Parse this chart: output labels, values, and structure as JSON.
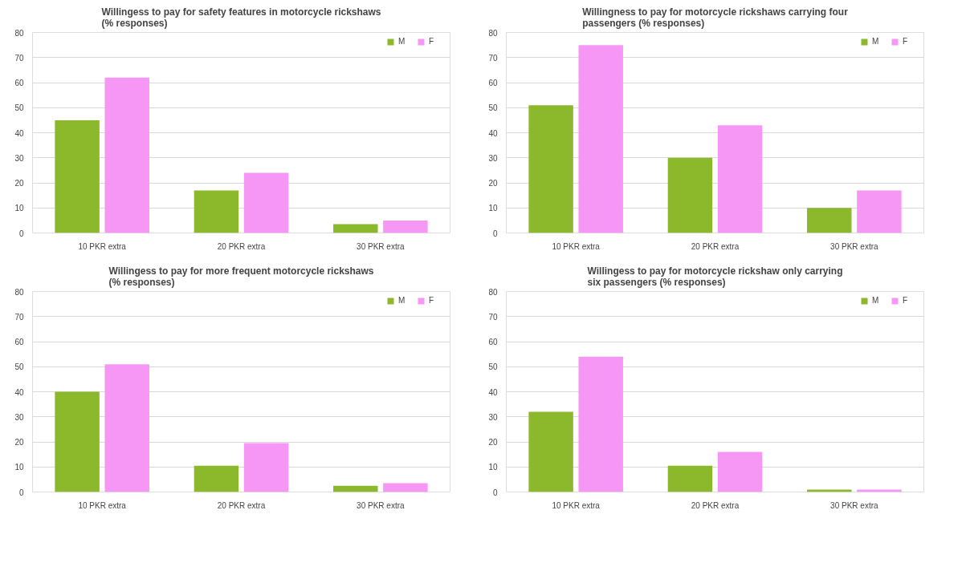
{
  "chart_data": [
    {
      "type": "bar",
      "title": "Willingess to pay for safety features in motorcycle rickshaws\n(% responses)",
      "categories": [
        "10 PKR extra",
        "20 PKR extra",
        "30 PKR extra"
      ],
      "series": [
        {
          "name": "M",
          "color": "#8cb82b",
          "values": [
            45,
            17,
            3.5
          ]
        },
        {
          "name": "F",
          "color": "#f797f5",
          "values": [
            62,
            24,
            5
          ]
        }
      ],
      "ylim": [
        0,
        80
      ],
      "yticks": [
        0,
        10,
        20,
        30,
        40,
        50,
        60,
        70,
        80
      ],
      "grid": "y",
      "legend": "top right"
    },
    {
      "type": "bar",
      "title": "Willingness to pay for motorcycle rickshaws carrying four\npassengers (% responses)",
      "categories": [
        "10 PKR extra",
        "20 PKR extra",
        "30 PKR extra"
      ],
      "series": [
        {
          "name": "M",
          "color": "#8cb82b",
          "values": [
            51,
            30,
            10
          ]
        },
        {
          "name": "F",
          "color": "#f797f5",
          "values": [
            75,
            43,
            17
          ]
        }
      ],
      "ylim": [
        0,
        80
      ],
      "yticks": [
        0,
        10,
        20,
        30,
        40,
        50,
        60,
        70,
        80
      ],
      "grid": "y",
      "legend": "top right"
    },
    {
      "type": "bar",
      "title": "Willingess to pay for more frequent motorcycle rickshaws\n(% responses)",
      "categories": [
        "10 PKR extra",
        "20 PKR extra",
        "30 PKR extra"
      ],
      "series": [
        {
          "name": "M",
          "color": "#8cb82b",
          "values": [
            40,
            10.5,
            2.5
          ]
        },
        {
          "name": "F",
          "color": "#f797f5",
          "values": [
            51,
            19.5,
            3.5
          ]
        }
      ],
      "ylim": [
        0,
        80
      ],
      "yticks": [
        0,
        10,
        20,
        30,
        40,
        50,
        60,
        70,
        80
      ],
      "grid": "y",
      "legend": "top right"
    },
    {
      "type": "bar",
      "title": "Willingess to pay for motorcycle rickshaw only carrying\nsix passengers (% responses)",
      "categories": [
        "10 PKR extra",
        "20 PKR extra",
        "30 PKR extra"
      ],
      "series": [
        {
          "name": "M",
          "color": "#8cb82b",
          "values": [
            32,
            10.5,
            1
          ]
        },
        {
          "name": "F",
          "color": "#f797f5",
          "values": [
            54,
            16,
            1
          ]
        }
      ],
      "ylim": [
        0,
        80
      ],
      "yticks": [
        0,
        10,
        20,
        30,
        40,
        50,
        60,
        70,
        80
      ],
      "grid": "y",
      "legend": "top right"
    }
  ]
}
